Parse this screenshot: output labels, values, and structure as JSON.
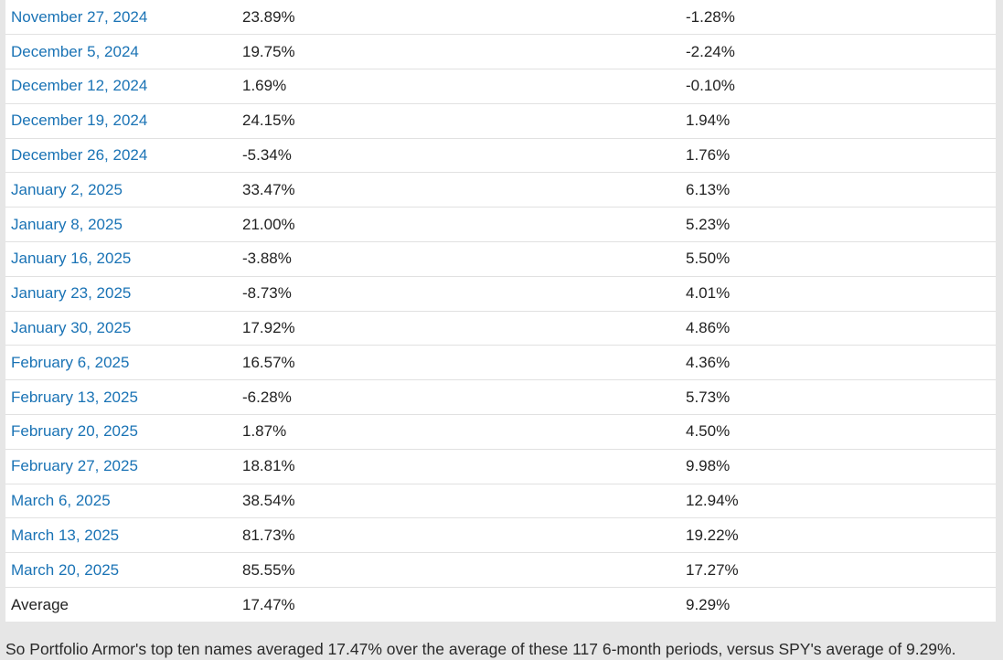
{
  "table": {
    "rows": [
      {
        "date": "November 27, 2024",
        "portfolio": "23.89%",
        "spy": "-1.28%"
      },
      {
        "date": "December 5, 2024",
        "portfolio": "19.75%",
        "spy": "-2.24%"
      },
      {
        "date": "December 12, 2024",
        "portfolio": "1.69%",
        "spy": "-0.10%"
      },
      {
        "date": "December 19, 2024",
        "portfolio": "24.15%",
        "spy": "1.94%"
      },
      {
        "date": "December 26, 2024",
        "portfolio": "-5.34%",
        "spy": "1.76%"
      },
      {
        "date": "January 2, 2025",
        "portfolio": "33.47%",
        "spy": "6.13%"
      },
      {
        "date": "January 8, 2025",
        "portfolio": "21.00%",
        "spy": "5.23%"
      },
      {
        "date": "January 16, 2025",
        "portfolio": "-3.88%",
        "spy": "5.50%"
      },
      {
        "date": "January 23, 2025",
        "portfolio": "-8.73%",
        "spy": "4.01%"
      },
      {
        "date": "January 30, 2025",
        "portfolio": "17.92%",
        "spy": "4.86%"
      },
      {
        "date": "February 6, 2025",
        "portfolio": "16.57%",
        "spy": "4.36%"
      },
      {
        "date": "February 13, 2025",
        "portfolio": "-6.28%",
        "spy": "5.73%"
      },
      {
        "date": "February 20, 2025",
        "portfolio": "1.87%",
        "spy": "4.50%"
      },
      {
        "date": "February 27, 2025",
        "portfolio": "18.81%",
        "spy": "9.98%"
      },
      {
        "date": "March 6, 2025",
        "portfolio": "38.54%",
        "spy": "12.94%"
      },
      {
        "date": "March 13, 2025",
        "portfolio": "81.73%",
        "spy": "19.22%"
      },
      {
        "date": "March 20, 2025",
        "portfolio": "85.55%",
        "spy": "17.27%"
      }
    ],
    "average": {
      "label": "Average",
      "portfolio": "17.47%",
      "spy": "9.29%"
    }
  },
  "summary": "So Portfolio Armor's top ten names averaged 17.47% over the average of these 117 6-month periods, versus SPY's average of 9.29%.",
  "colors": {
    "link": "#1a73b5",
    "text": "#222222",
    "page_background": "#e6e6e6",
    "table_background": "#ffffff",
    "row_border": "#e1e1e1"
  }
}
